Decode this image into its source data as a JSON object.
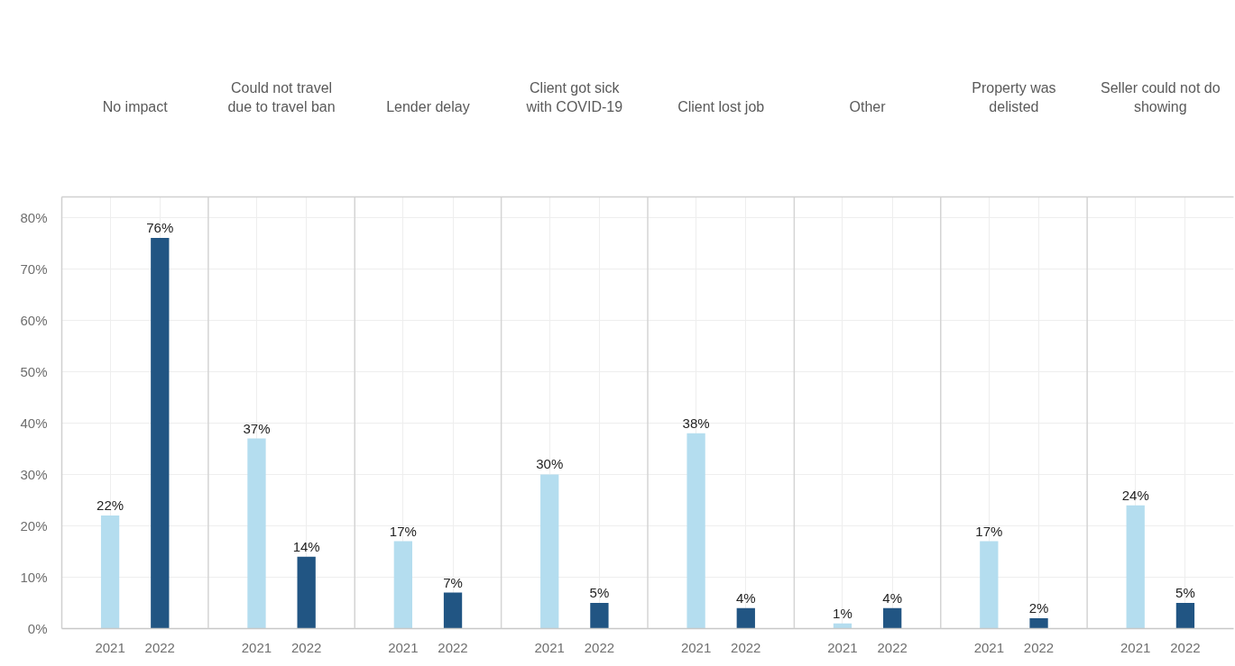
{
  "chart_data": {
    "type": "bar",
    "categories": [
      "No impact",
      "Could not travel due to travel ban",
      "Lender delay",
      "Client got sick with COVID-19",
      "Client lost job",
      "Other",
      "Property was delisted",
      "Seller could not do showing"
    ],
    "series": [
      {
        "name": "2021",
        "color": "#b4ddef",
        "values": [
          22,
          37,
          17,
          30,
          38,
          1,
          17,
          24
        ],
        "value_labels": [
          "22%",
          "37%",
          "17%",
          "30%",
          "38%",
          "1%",
          "17%",
          "24%"
        ]
      },
      {
        "name": "2022",
        "color": "#215583",
        "values": [
          76,
          14,
          7,
          5,
          4,
          4,
          2,
          5
        ],
        "value_labels": [
          "76%",
          "14%",
          "7%",
          "5%",
          "4%",
          "4%",
          "2%",
          "5%"
        ]
      }
    ],
    "ylim": [
      0,
      84
    ],
    "yticks": [
      {
        "value": 0,
        "label": "0%"
      },
      {
        "value": 10,
        "label": "10%"
      },
      {
        "value": 20,
        "label": "20%"
      },
      {
        "value": 30,
        "label": "30%"
      },
      {
        "value": 40,
        "label": "40%"
      },
      {
        "value": 50,
        "label": "50%"
      },
      {
        "value": 60,
        "label": "60%"
      },
      {
        "value": 70,
        "label": "70%"
      },
      {
        "value": 80,
        "label": "80%"
      }
    ],
    "grid": true
  }
}
